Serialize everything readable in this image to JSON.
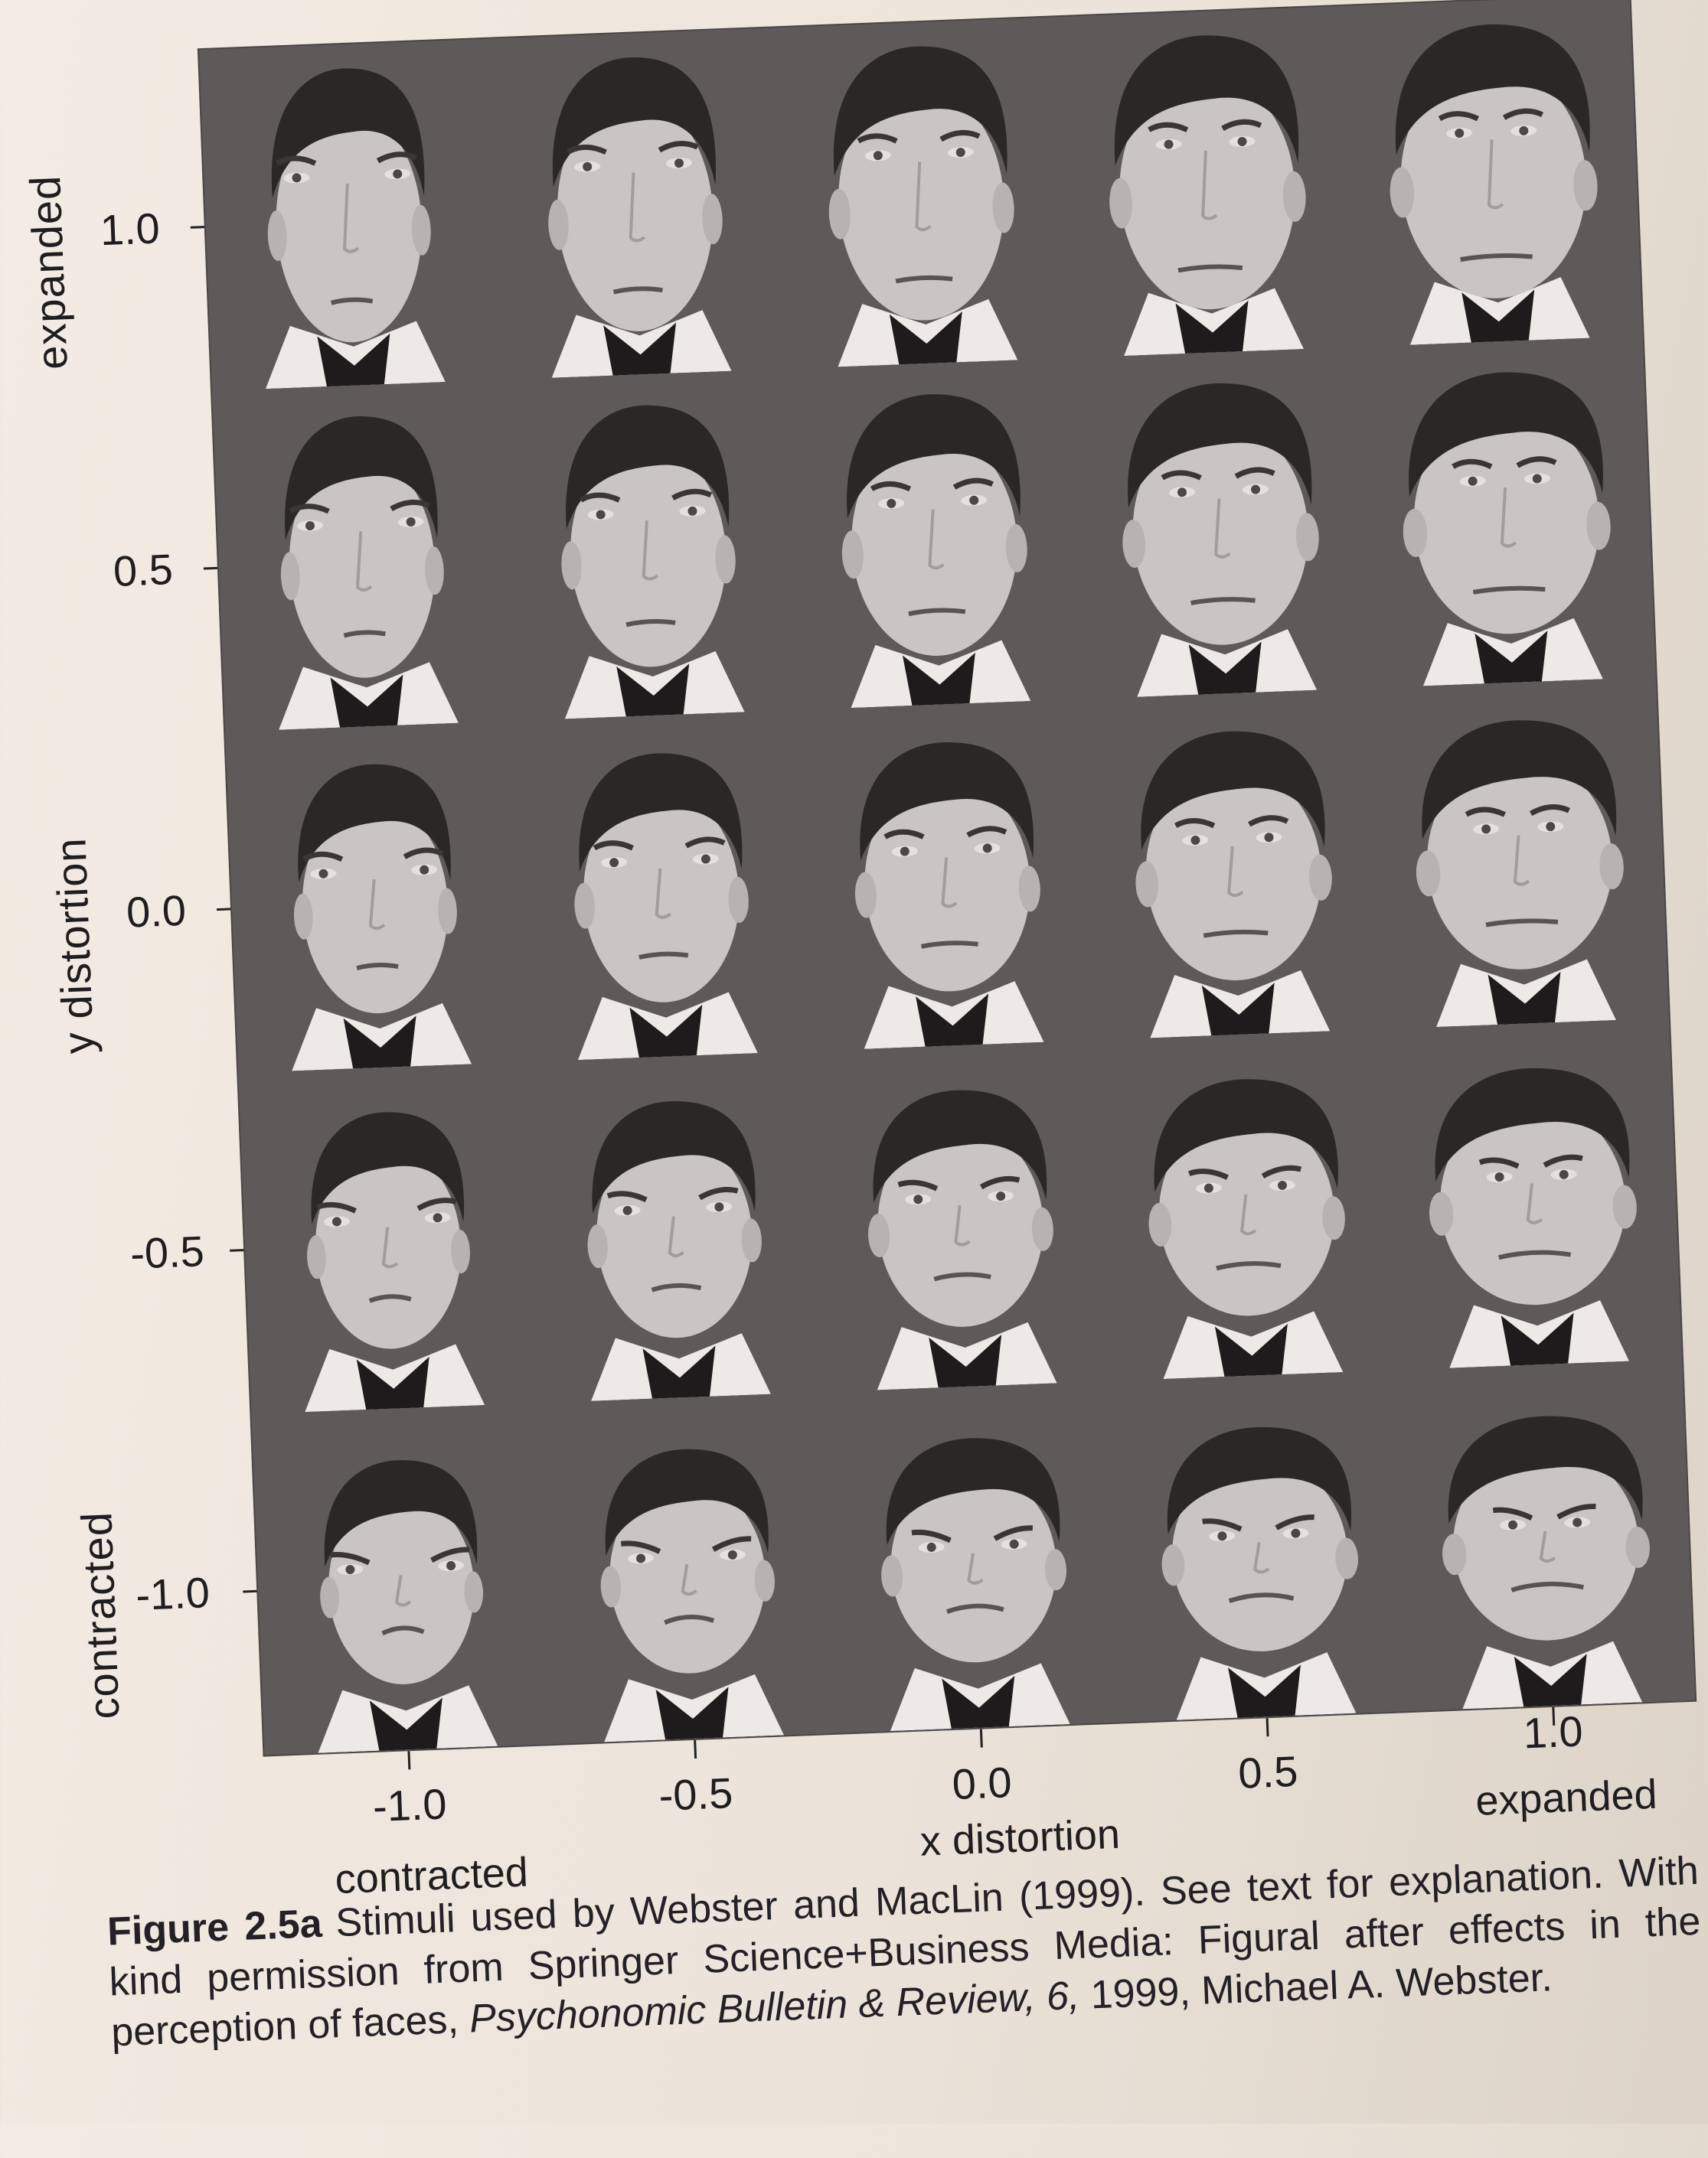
{
  "figure": {
    "y_axis": {
      "title": "y distortion",
      "top_label": "expanded",
      "bottom_label": "contracted",
      "ticks": [
        "1.0",
        "0.5",
        "0.0",
        "-0.5",
        "-1.0"
      ]
    },
    "x_axis": {
      "title": "x distortion",
      "left_label": "contracted",
      "right_label": "expanded",
      "ticks": [
        "-1.0",
        "-0.5",
        "0.0",
        "0.5",
        "1.0"
      ]
    },
    "grid": {
      "rows_y": [
        1.0,
        0.5,
        0.0,
        -0.5,
        -1.0
      ],
      "cols_x": [
        -1.0,
        -0.5,
        0.0,
        0.5,
        1.0
      ],
      "cell_content": "face-photo-icon"
    }
  },
  "caption": {
    "label": "Figure 2.5a",
    "text_1": "Stimuli used by Webster and MacLin (1999). See text for explanation. With kind permission from Springer Science+Business Media: Figural after effects in the perception of faces, ",
    "journal": "Psychonomic Bulletin & Review, 6,",
    "text_2": " 1999, Michael A. Webster."
  },
  "colors": {
    "page": "#f0e9e1",
    "plot_background": "#5d5a59",
    "skin": "#c9c5c2",
    "hair": "#2a2727",
    "text": "#1e1d1f"
  }
}
